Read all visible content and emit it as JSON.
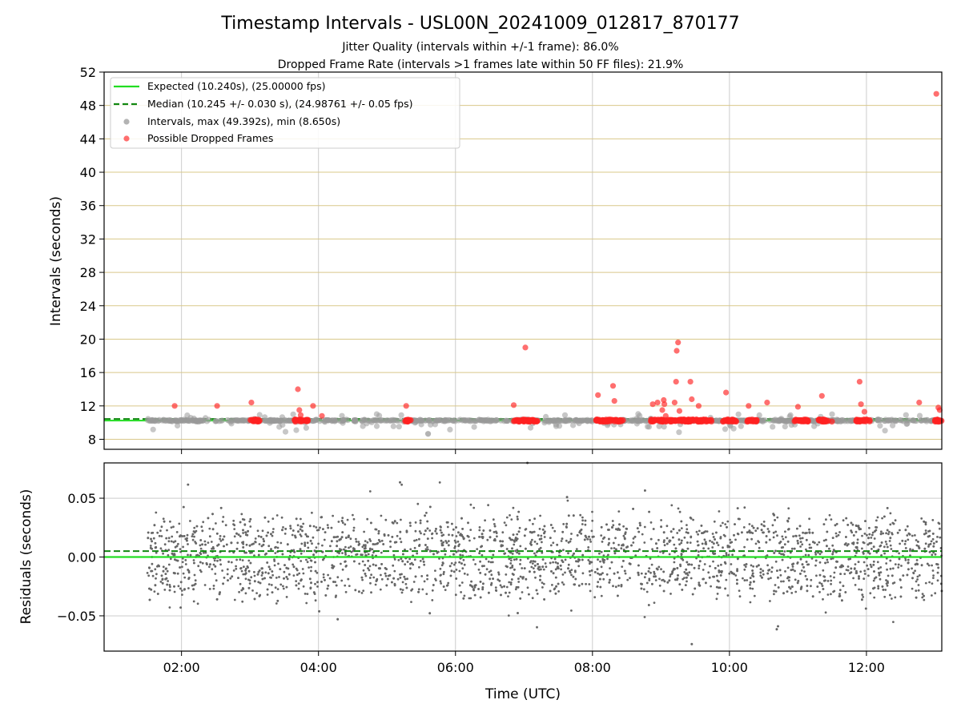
{
  "title": "Timestamp Intervals - USL00N_20241009_012817_870177",
  "subtitle_lines": [
    "Jitter Quality (intervals within +/-1 frame): 86.0%",
    "Dropped Frame Rate (intervals >1 frames late within 50 FF files): 21.9%"
  ],
  "colors": {
    "expected": "#22dd22",
    "median": "#118811",
    "interval_points": "#999999",
    "dropped_points": "#ff2222",
    "residual_points": "#666666",
    "horizontal_grid": "#d9c88a",
    "vertical_grid": "#cccccc"
  },
  "chart_data": [
    {
      "type": "scatter",
      "panel": "top",
      "ylabel": "Intervals (seconds)",
      "xlabel": "",
      "xlim_hours": [
        0.87,
        13.1
      ],
      "ylim": [
        6.8,
        52
      ],
      "yticks": [
        8,
        12,
        16,
        20,
        24,
        28,
        32,
        36,
        40,
        44,
        48,
        52
      ],
      "xticks_hours": [
        2,
        4,
        6,
        8,
        10,
        12
      ],
      "xtick_labels": [
        "02:00",
        "04:00",
        "06:00",
        "08:00",
        "10:00",
        "12:00"
      ],
      "x_tick_labels_visible": false,
      "grid": "horizontal grid in tan, vertical grid in gray",
      "legend_position": "top-left",
      "legend": [
        {
          "label": "Expected (10.240s), (25.00000 fps)",
          "kind": "line-solid",
          "color": "#22dd22"
        },
        {
          "label": "Median (10.245 +/- 0.030 s), (24.98761 +/- 0.05 fps)",
          "kind": "line-dashed",
          "color": "#118811"
        },
        {
          "label": "Intervals, max (49.392s), min (8.650s)",
          "kind": "marker",
          "color": "#999999"
        },
        {
          "label": "Possible Dropped Frames",
          "kind": "marker",
          "color": "#ff2222"
        }
      ],
      "expected_value": 10.24,
      "median_value": 10.245,
      "series": [
        {
          "name": "Intervals, max (49.392s), min (8.650s)",
          "x_range_hours": [
            1.5,
            13.1
          ],
          "typical_value": 10.24,
          "max": 49.392,
          "min": 8.65
        },
        {
          "name": "Possible Dropped Frames",
          "points": [
            [
              1.9,
              12.0
            ],
            [
              2.52,
              12.0
            ],
            [
              3.02,
              12.4
            ],
            [
              3.7,
              14.0
            ],
            [
              3.72,
              11.5
            ],
            [
              3.74,
              10.9
            ],
            [
              3.92,
              12.0
            ],
            [
              4.05,
              10.8
            ],
            [
              5.28,
              12.0
            ],
            [
              6.85,
              12.1
            ],
            [
              7.02,
              19.0
            ],
            [
              8.08,
              13.3
            ],
            [
              8.3,
              14.4
            ],
            [
              8.32,
              12.6
            ],
            [
              8.88,
              12.2
            ],
            [
              8.95,
              12.4
            ],
            [
              9.02,
              11.5
            ],
            [
              9.04,
              12.7
            ],
            [
              9.05,
              12.2
            ],
            [
              9.07,
              10.8
            ],
            [
              9.2,
              12.4
            ],
            [
              9.22,
              14.9
            ],
            [
              9.23,
              18.6
            ],
            [
              9.25,
              19.6
            ],
            [
              9.27,
              11.4
            ],
            [
              9.43,
              14.9
            ],
            [
              9.45,
              12.8
            ],
            [
              9.55,
              12.0
            ],
            [
              9.95,
              13.6
            ],
            [
              10.28,
              12.0
            ],
            [
              10.55,
              12.4
            ],
            [
              11.0,
              11.9
            ],
            [
              11.35,
              13.2
            ],
            [
              11.9,
              14.9
            ],
            [
              11.92,
              12.2
            ],
            [
              11.97,
              11.3
            ],
            [
              12.77,
              12.4
            ],
            [
              13.05,
              11.8
            ],
            [
              13.07,
              11.5
            ],
            [
              13.02,
              49.392
            ]
          ],
          "clusters_at_10_24_hours": [
            [
              3.0,
              3.15
            ],
            [
              3.65,
              3.85
            ],
            [
              5.25,
              5.35
            ],
            [
              6.85,
              7.2
            ],
            [
              8.05,
              8.45
            ],
            [
              8.85,
              9.75
            ],
            [
              9.9,
              10.1
            ],
            [
              10.25,
              10.4
            ],
            [
              10.95,
              11.15
            ],
            [
              11.3,
              11.5
            ],
            [
              11.85,
              12.05
            ],
            [
              13.0,
              13.1
            ]
          ]
        }
      ]
    },
    {
      "type": "scatter",
      "panel": "bottom",
      "ylabel": "Residuals (seconds)",
      "xlabel": "Time (UTC)",
      "xlim_hours": [
        0.87,
        13.1
      ],
      "ylim": [
        -0.08,
        0.08
      ],
      "yticks": [
        0.05,
        0.0,
        -0.05
      ],
      "ytick_labels": [
        "0.05",
        "0.00",
        "−0.05"
      ],
      "xticks_hours": [
        2,
        4,
        6,
        8,
        10,
        12
      ],
      "xtick_labels": [
        "02:00",
        "04:00",
        "06:00",
        "08:00",
        "10:00",
        "12:00"
      ],
      "grid": "both axes, gray",
      "expected_residual": 0.0,
      "median_residual": 0.005,
      "series": [
        {
          "name": "Residuals",
          "x_range_hours": [
            1.5,
            13.1
          ],
          "bands": [
            0.02,
            0.0,
            -0.02
          ],
          "spread": 0.04,
          "max": 0.08,
          "min": -0.074
        }
      ]
    }
  ]
}
